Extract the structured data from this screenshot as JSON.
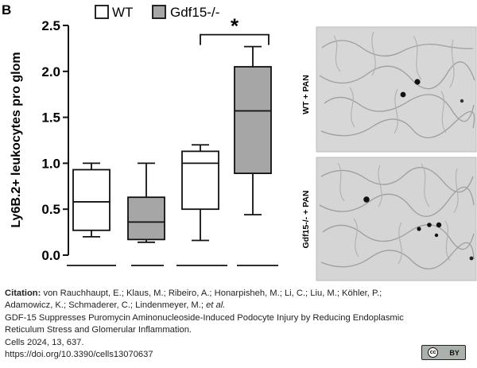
{
  "panel_letter": "B",
  "chart_data": {
    "type": "box",
    "ylabel": "Ly6B.2+ leukocytes pro glom",
    "xlabel": "",
    "ylim": [
      0,
      2.5
    ],
    "y_ticks": [
      "0.0",
      "0.5",
      "1.0",
      "1.5",
      "2.0",
      "2.5"
    ],
    "legend": [
      {
        "label": "WT",
        "color": "#ffffff"
      },
      {
        "label": "Gdf15-/-",
        "color": "#a6a6a6"
      }
    ],
    "boxes": [
      {
        "series": "WT",
        "min": 0.2,
        "q1": 0.27,
        "median": 0.58,
        "q3": 0.93,
        "max": 1.0,
        "color": "#ffffff"
      },
      {
        "series": "Gdf15-/-",
        "min": 0.14,
        "q1": 0.17,
        "median": 0.36,
        "q3": 0.63,
        "max": 1.0,
        "color": "#a6a6a6"
      },
      {
        "series": "WT",
        "min": 0.16,
        "q1": 0.5,
        "median": 1.0,
        "q3": 1.13,
        "max": 1.2,
        "color": "#ffffff"
      },
      {
        "series": "Gdf15-/-",
        "min": 0.44,
        "q1": 0.89,
        "median": 1.57,
        "q3": 2.05,
        "max": 2.27,
        "color": "#a6a6a6"
      }
    ],
    "significance": {
      "between": [
        2,
        3
      ],
      "label": "*"
    },
    "micrograph_labels": [
      "WT + PAN",
      "Gdf15-/- + PAN"
    ]
  },
  "citation": {
    "label": "Citation:",
    "authors_1": " von Rauchhaupt, E.; Klaus, M.; Ribeiro, A.; Honarpisheh, M.; Li, C.; Liu, M.; Köhler, P.;",
    "authors_2": "Adamowicz, K.; Schmaderer, C.; Lindenmeyer, M.; ",
    "etal": "et al.",
    "title_1": "GDF-15 Suppresses Puromycin Aminonucleoside-Induced Podocyte Injury by Reducing Endoplasmic",
    "title_2": "Reticulum Stress and Glomerular Inflammation.",
    "journal": "Cells 2024, 13, 637.",
    "doi": "https://doi.org/10.3390/cells13070637"
  },
  "license": {
    "cc": "cc",
    "by": "BY"
  }
}
